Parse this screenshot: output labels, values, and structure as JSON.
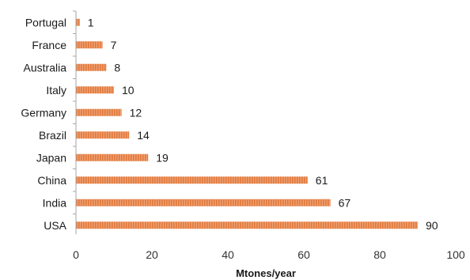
{
  "chart_data": {
    "type": "bar",
    "orientation": "horizontal",
    "categories": [
      "USA",
      "India",
      "China",
      "Japan",
      "Brazil",
      "Germany",
      "Italy",
      "Australia",
      "France",
      "Portugal"
    ],
    "values": [
      90,
      67,
      61,
      19,
      14,
      12,
      10,
      8,
      7,
      1
    ],
    "data_labels": [
      "90",
      "67",
      "61",
      "19",
      "14",
      "12",
      "10",
      "8",
      "7",
      "1"
    ],
    "xlabel": "Mtones/year",
    "xlim": [
      0,
      100
    ],
    "xticks": [
      0,
      20,
      40,
      60,
      80,
      100
    ],
    "xtick_labels": [
      "0",
      "20",
      "40",
      "60",
      "80",
      "100"
    ],
    "grid": false,
    "legend": "none",
    "colors": {
      "bar": "#f0a070",
      "bar_stripe": "#e07a3e",
      "axis": "#a6a6a6"
    }
  }
}
